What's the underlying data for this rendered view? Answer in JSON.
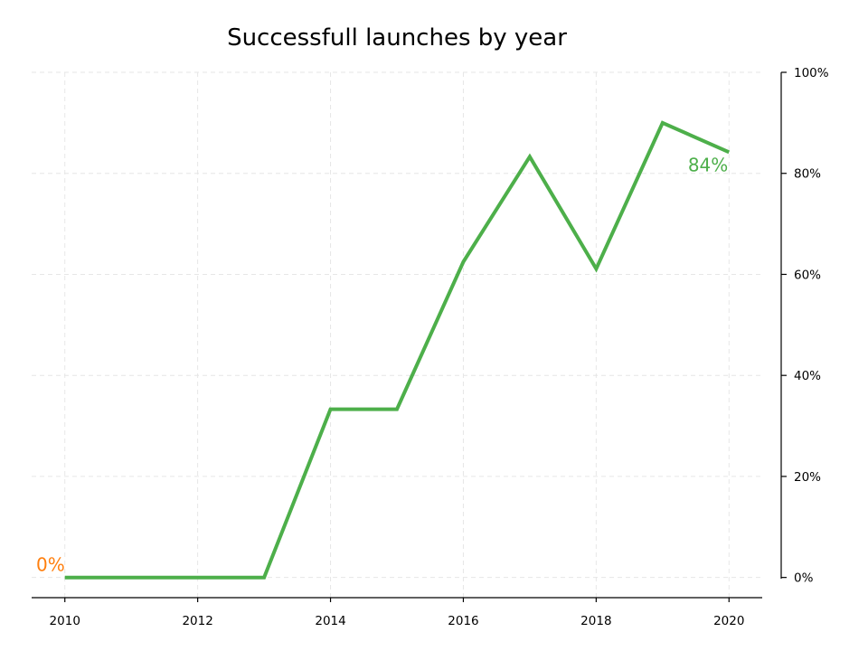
{
  "chart_data": {
    "type": "line",
    "title": "Successfull launches by year",
    "xlabel": "",
    "ylabel": "",
    "x": [
      2010,
      2011,
      2012,
      2013,
      2014,
      2015,
      2016,
      2017,
      2018,
      2019,
      2020
    ],
    "series": [
      {
        "values": [
          0,
          0,
          0,
          0,
          33.3,
          33.3,
          62.5,
          83.3,
          61.1,
          90.0,
          84.2
        ],
        "color": "#4daf4a"
      }
    ],
    "x_ticks": [
      "2010",
      "2012",
      "2014",
      "2016",
      "2018",
      "2020"
    ],
    "y_ticks": [
      "0%",
      "20%",
      "40%",
      "60%",
      "80%",
      "100%"
    ],
    "ylim": [
      -4,
      100
    ],
    "xlim": [
      2009.5,
      2020.5
    ],
    "y_axis_side": "right",
    "grid": true,
    "annotations": [
      {
        "text": "0%",
        "x": 2010,
        "y": 0,
        "color": "#ff7f0e"
      },
      {
        "text": "84%",
        "x": 2020,
        "y": 84.2,
        "color": "#4daf4a"
      }
    ]
  }
}
